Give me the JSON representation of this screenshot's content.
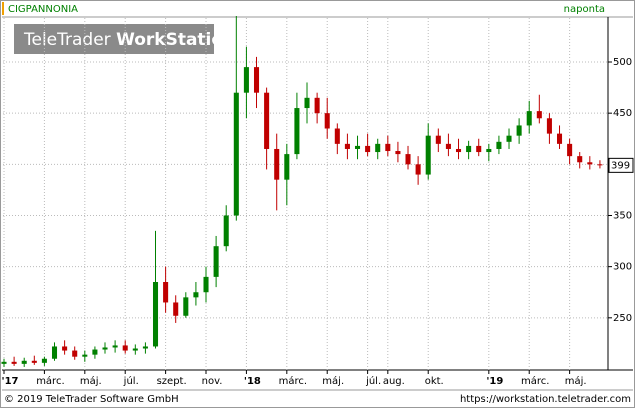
{
  "chart_data": {
    "type": "candlestick",
    "title": "CIGPANNONIA",
    "interval": "naponta",
    "watermark": [
      "TeleTrader ",
      "WorkStation"
    ],
    "footer_left": "© 2019 TeleTrader Software GmbH",
    "footer_right": "https://workstation.teletrader.com",
    "up_color": "#008000",
    "down_color": "#c00000",
    "x": [
      0,
      0.5,
      1,
      1.5,
      2,
      2.5,
      3,
      3.5,
      4,
      4.5,
      5,
      5.5,
      6,
      6.5,
      7,
      7.5,
      8,
      8.5,
      9,
      9.5,
      10,
      10.5,
      11,
      11.5,
      12,
      12.5,
      13,
      13.5,
      14,
      14.5,
      15,
      15.5,
      16,
      16.5,
      17,
      17.5,
      18,
      18.5,
      19,
      19.5,
      20,
      20.5,
      21,
      21.5,
      22,
      22.5,
      23,
      23.5,
      24,
      24.5,
      25,
      25.5,
      26,
      26.5,
      27,
      27.5,
      28,
      28.5,
      29,
      29.5
    ],
    "open": [
      205,
      207,
      205,
      208,
      206,
      210,
      222,
      218,
      212,
      214,
      219,
      221,
      223,
      218,
      220,
      222,
      285,
      265,
      252,
      270,
      275,
      290,
      320,
      350,
      470,
      495,
      470,
      415,
      385,
      410,
      455,
      465,
      450,
      435,
      420,
      415,
      418,
      412,
      420,
      413,
      410,
      400,
      390,
      428,
      420,
      415,
      412,
      418,
      412,
      415,
      422,
      428,
      438,
      452,
      445,
      430,
      420,
      408,
      402,
      400
    ],
    "high": [
      210,
      212,
      211,
      213,
      212,
      226,
      228,
      222,
      218,
      222,
      226,
      228,
      228,
      224,
      226,
      335,
      300,
      272,
      275,
      285,
      300,
      330,
      360,
      545,
      515,
      505,
      475,
      430,
      420,
      470,
      480,
      470,
      465,
      440,
      430,
      428,
      430,
      425,
      428,
      422,
      418,
      408,
      440,
      435,
      430,
      425,
      423,
      425,
      420,
      428,
      435,
      445,
      462,
      468,
      450,
      438,
      425,
      412,
      408,
      404
    ],
    "low": [
      202,
      203,
      202,
      204,
      203,
      208,
      214,
      209,
      207,
      210,
      215,
      216,
      215,
      214,
      215,
      220,
      255,
      245,
      250,
      262,
      265,
      280,
      315,
      345,
      445,
      455,
      395,
      355,
      360,
      405,
      440,
      440,
      425,
      410,
      405,
      405,
      408,
      405,
      408,
      402,
      395,
      380,
      385,
      412,
      408,
      405,
      405,
      408,
      403,
      410,
      415,
      420,
      430,
      440,
      420,
      415,
      400,
      396,
      395,
      396
    ],
    "close": [
      207,
      205,
      208,
      206,
      210,
      222,
      218,
      212,
      214,
      219,
      221,
      223,
      218,
      220,
      222,
      285,
      265,
      252,
      270,
      275,
      290,
      320,
      350,
      470,
      495,
      470,
      415,
      385,
      410,
      455,
      465,
      450,
      435,
      420,
      415,
      418,
      412,
      420,
      413,
      410,
      400,
      390,
      428,
      420,
      415,
      412,
      418,
      412,
      415,
      422,
      428,
      438,
      452,
      445,
      430,
      420,
      408,
      402,
      400,
      399
    ],
    "xlim": [
      -0.05,
      29.9
    ],
    "xticks": [
      {
        "value": 0,
        "label": "'17"
      },
      {
        "value": 2,
        "label": "márc."
      },
      {
        "value": 4,
        "label": "máj."
      },
      {
        "value": 6,
        "label": "júl."
      },
      {
        "value": 8,
        "label": "szept."
      },
      {
        "value": 10,
        "label": "nov."
      },
      {
        "value": 12,
        "label": "'18"
      },
      {
        "value": 14,
        "label": "márc."
      },
      {
        "value": 16,
        "label": "máj."
      },
      {
        "value": 18,
        "label": "júl."
      },
      {
        "value": 19,
        "label": "aug."
      },
      {
        "value": 21,
        "label": "okt."
      },
      {
        "value": 24,
        "label": "'19"
      },
      {
        "value": 26,
        "label": "márc."
      },
      {
        "value": 28,
        "label": "máj."
      }
    ],
    "ylim": [
      199,
      543
    ],
    "yticks": [
      250,
      300,
      350,
      400,
      450,
      500
    ],
    "grid": true
  }
}
